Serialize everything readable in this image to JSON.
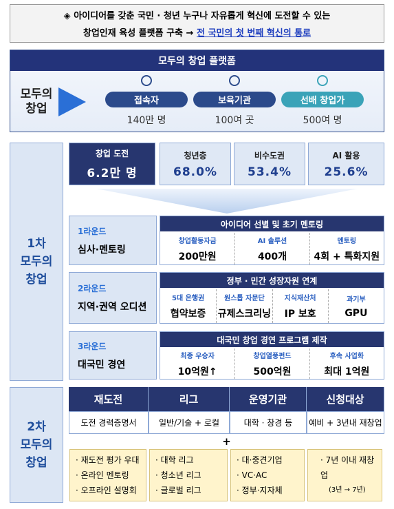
{
  "header": {
    "line1": "◈ 아이디어를 갖춘 국민 · 청년 누구나 자유롭게 혁신에 도전할 수 있는",
    "line2": "창업인재 육성 플랫폼 구축 →",
    "highlight": "전 국민의 첫 번째 혁신의 통로"
  },
  "platform": {
    "title": "모두의 창업 플랫폼",
    "logo": [
      "모두의",
      "창업"
    ],
    "items": [
      {
        "label": "접속자",
        "value": "140만 명"
      },
      {
        "label": "보육기관",
        "value": "100여 곳"
      },
      {
        "label": "선배 창업가",
        "value": "500여 명"
      }
    ]
  },
  "phase1": {
    "label": [
      "1차",
      "모두의",
      "창업"
    ],
    "stats": [
      {
        "label": "창업 도전",
        "value": "6.2만 명"
      },
      {
        "label": "청년층",
        "value": "68.0%"
      },
      {
        "label": "비수도권",
        "value": "53.4%"
      },
      {
        "label": "AI 활용",
        "value": "25.6%"
      }
    ],
    "rounds": [
      {
        "round": "1라운드",
        "name": "심사·멘토링",
        "title": "아이디어 선별 및 초기 멘토링",
        "items": [
          {
            "label": "창업활동자금",
            "value": "200만원"
          },
          {
            "label": "AI 솔루션",
            "value": "400개"
          },
          {
            "label": "멘토링",
            "value": "4회 + 특화지원"
          }
        ]
      },
      {
        "round": "2라운드",
        "name": "지역·권역 오디션",
        "title": "정부 · 민간 성장자원 연계",
        "items": [
          {
            "label": "5대 은행권",
            "value": "협약보증"
          },
          {
            "label": "원스톱 자문단",
            "value": "규제스크리닝"
          },
          {
            "label": "지식재산처",
            "value": "IP 보호"
          },
          {
            "label": "과기부",
            "value": "GPU"
          }
        ]
      },
      {
        "round": "3라운드",
        "name": "대국민 경연",
        "title": "대국민 창업 경연 프로그램 제작",
        "items": [
          {
            "label": "최종 우승자",
            "value": "10억원↑"
          },
          {
            "label": "창업열풍펀드",
            "value": "500억원"
          },
          {
            "label": "후속 사업화",
            "value": "최대 1억원"
          }
        ]
      }
    ]
  },
  "phase2": {
    "label": [
      "2차",
      "모두의",
      "창업"
    ],
    "columns": [
      "재도전",
      "리그",
      "운영기관",
      "신청대상"
    ],
    "row": [
      "도전 경력증명서",
      "일반/기술 + 로컬",
      "대학 · 창경 등",
      "예비 + 3년내 재창업"
    ],
    "plus": "+",
    "details": [
      {
        "items": [
          "재도전 평가 우대",
          "온라인 멘토링",
          "오프라인 설명회"
        ]
      },
      {
        "items": [
          "대학 리그",
          "청소년 리그",
          "글로벌 리그"
        ]
      },
      {
        "items": [
          "대·중견기업",
          "VC·AC",
          "정부·지자체"
        ]
      },
      {
        "items": [
          "7년 이내 재창업"
        ],
        "note": "(3년 → 7년)"
      }
    ]
  }
}
